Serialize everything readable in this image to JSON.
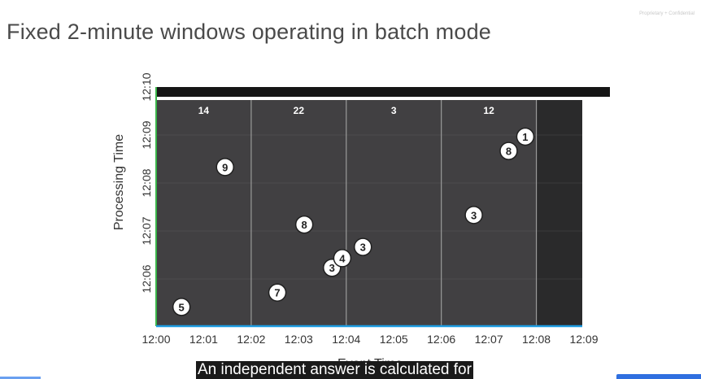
{
  "header": {
    "title": "Fixed 2-minute windows operating in batch mode",
    "corner_note": "Proprietary + Confidential"
  },
  "caption": {
    "text": "An independent answer is calculated for"
  },
  "chart_data": {
    "type": "scatter",
    "title": "Fixed 2-minute windows operating in batch mode",
    "xlabel": "Event Time",
    "ylabel": "Processing Time",
    "x_ticks": [
      "12:00",
      "12:01",
      "12:02",
      "12:03",
      "12:04",
      "12:05",
      "12:06",
      "12:07",
      "12:08",
      "12:09"
    ],
    "y_ticks": [
      "12:06",
      "12:07",
      "12:08",
      "12:09",
      "12:10"
    ],
    "xlim": [
      "12:00",
      "12:09"
    ],
    "ylim": [
      "12:05:05",
      "12:10"
    ],
    "windows": [
      {
        "start": "12:00",
        "end": "12:02",
        "total": "14"
      },
      {
        "start": "12:02",
        "end": "12:04",
        "total": "22"
      },
      {
        "start": "12:04",
        "end": "12:06",
        "total": "3"
      },
      {
        "start": "12:06",
        "end": "12:08",
        "total": "12"
      }
    ],
    "points": [
      {
        "event_time": "12:00:32",
        "processing_time": "12:05:25",
        "value": "5"
      },
      {
        "event_time": "12:01:27",
        "processing_time": "12:08:20",
        "value": "9"
      },
      {
        "event_time": "12:02:33",
        "processing_time": "12:05:43",
        "value": "7"
      },
      {
        "event_time": "12:03:07",
        "processing_time": "12:07:08",
        "value": "8"
      },
      {
        "event_time": "12:03:42",
        "processing_time": "12:06:14",
        "value": "3"
      },
      {
        "event_time": "12:03:55",
        "processing_time": "12:06:26",
        "value": "4"
      },
      {
        "event_time": "12:04:21",
        "processing_time": "12:06:40",
        "value": "3"
      },
      {
        "event_time": "12:06:41",
        "processing_time": "12:07:20",
        "value": "3"
      },
      {
        "event_time": "12:07:25",
        "processing_time": "12:08:40",
        "value": "8"
      },
      {
        "event_time": "12:07:46",
        "processing_time": "12:08:58",
        "value": "1"
      }
    ],
    "colors": {
      "plot_background": "#414042",
      "batch_band": "#2a2a2b",
      "window_divider": "#9a9a9a",
      "grid": "#8a8a8a",
      "point_fill": "#ffffff",
      "point_text": "#222222",
      "top_bar": "#151515",
      "left_axis_line": "#3bb54a",
      "bottom_axis_line": "#1d9be0"
    }
  }
}
